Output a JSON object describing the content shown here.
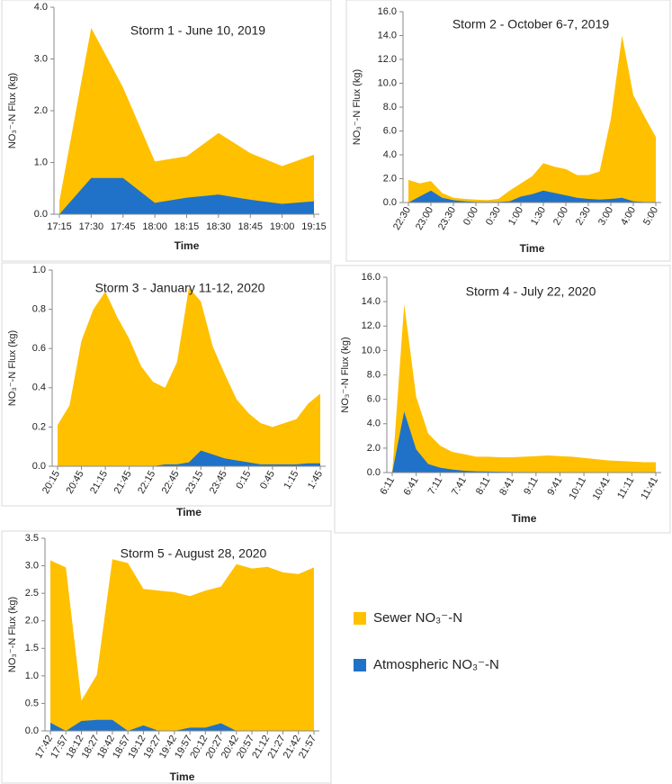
{
  "chart_data": [
    {
      "type": "area",
      "title": "Storm 1 - June 10, 2019",
      "y_label": "NO₃⁻-N Flux (kg)",
      "x_label": "Time",
      "categories": [
        "17:15",
        "17:30",
        "17:45",
        "18:00",
        "18:15",
        "18:30",
        "18:45",
        "19:00",
        "19:15"
      ],
      "series": [
        {
          "color": "#ffc000",
          "values": [
            0.25,
            3.6,
            2.45,
            1.02,
            1.12,
            1.57,
            1.18,
            0.93,
            1.15
          ]
        },
        {
          "color": "#1f72c8",
          "values": [
            0,
            0.7,
            0.7,
            0.22,
            0.32,
            0.38,
            0.28,
            0.2,
            0.25
          ]
        }
      ],
      "ylim": [
        0,
        4
      ],
      "yticks": [
        {
          "value": 0,
          "label": "0.0"
        },
        {
          "value": 1,
          "label": "1.0"
        },
        {
          "value": 2,
          "label": "2.0"
        },
        {
          "value": 3,
          "label": "3.0"
        },
        {
          "value": 4,
          "label": "4.0"
        }
      ],
      "rotate_labels": false
    },
    {
      "type": "area",
      "title": "Storm 2 - October 6-7, 2019",
      "y_label": "NO₃⁻-N Flux (kg)",
      "x_label": "Time",
      "categories": [
        "22:30",
        null,
        "23:00",
        null,
        "23:30",
        null,
        "0:00",
        null,
        "0:30",
        null,
        "1:00",
        null,
        "1:30",
        null,
        "2:00",
        null,
        "2:30",
        null,
        "3:00",
        null,
        "4:00",
        null,
        "5:00"
      ],
      "series": [
        {
          "color": "#ffc000",
          "values": [
            1.9,
            1.6,
            1.8,
            0.8,
            0.4,
            0.3,
            0.25,
            0.2,
            0.3,
            1.0,
            1.6,
            2.2,
            3.3,
            3.0,
            2.8,
            2.3,
            2.3,
            2.6,
            7.0,
            14.0,
            9.0,
            7.2,
            5.5
          ]
        },
        {
          "color": "#1f72c8",
          "values": [
            0,
            0.5,
            1.0,
            0.4,
            0.2,
            0.1,
            0.05,
            0.05,
            0.05,
            0.1,
            0.5,
            0.7,
            1.0,
            0.8,
            0.6,
            0.4,
            0.3,
            0.25,
            0.3,
            0.4,
            0.1,
            0.05,
            0.05
          ]
        }
      ],
      "ylim": [
        0,
        16
      ],
      "yticks": [
        {
          "value": 0,
          "label": "0.0"
        },
        {
          "value": 2,
          "label": "2.0"
        },
        {
          "value": 4,
          "label": "4.0"
        },
        {
          "value": 6,
          "label": "6.0"
        },
        {
          "value": 8,
          "label": "8.0"
        },
        {
          "value": 10,
          "label": "10.0"
        },
        {
          "value": 12,
          "label": "12.0"
        },
        {
          "value": 14,
          "label": "14.0"
        },
        {
          "value": 16,
          "label": "16.0"
        }
      ],
      "rotate_labels": true
    },
    {
      "type": "area",
      "title": "Storm 3 - January 11-12, 2020",
      "y_label": "NO₃⁻-N Flux (kg)",
      "x_label": "Time",
      "categories": [
        "20:15",
        null,
        "20:45",
        null,
        "21:15",
        null,
        "21:45",
        null,
        "22:15",
        null,
        "22:45",
        null,
        "23:15",
        null,
        "23:45",
        null,
        "0:15",
        null,
        "0:45",
        null,
        "1:15",
        null,
        "1:45"
      ],
      "series": [
        {
          "color": "#ffc000",
          "values": [
            0.21,
            0.31,
            0.64,
            0.8,
            0.89,
            0.76,
            0.65,
            0.51,
            0.43,
            0.4,
            0.53,
            0.91,
            0.84,
            0.61,
            0.47,
            0.34,
            0.27,
            0.22,
            0.2,
            0.22,
            0.24,
            0.32,
            0.37
          ]
        },
        {
          "color": "#1f72c8",
          "values": [
            0,
            0,
            0,
            0,
            0,
            0,
            0,
            0,
            0,
            0.01,
            0.01,
            0.02,
            0.08,
            0.06,
            0.04,
            0.03,
            0.02,
            0.01,
            0.01,
            0.01,
            0.01,
            0.015,
            0.015
          ]
        }
      ],
      "ylim": [
        0,
        1
      ],
      "yticks": [
        {
          "value": 0,
          "label": "0.0"
        },
        {
          "value": 0.2,
          "label": "0.2"
        },
        {
          "value": 0.4,
          "label": "0.4"
        },
        {
          "value": 0.6,
          "label": "0.6"
        },
        {
          "value": 0.8,
          "label": "0.8"
        },
        {
          "value": 1,
          "label": "1.0"
        }
      ],
      "rotate_labels": true
    },
    {
      "type": "area",
      "title": "Storm 4 - July 22, 2020",
      "y_label": "NO₃⁻-N Flux (kg)",
      "x_label": "Time",
      "categories": [
        "6:11",
        null,
        "6:41",
        null,
        "7:11",
        null,
        "7:41",
        null,
        "8:11",
        null,
        "8:41",
        null,
        "9:11",
        null,
        "9:41",
        null,
        "10:11",
        null,
        "10:41",
        null,
        "11:11",
        null,
        "11:41"
      ],
      "series": [
        {
          "color": "#ffc000",
          "values": [
            0,
            13.8,
            6.2,
            3.2,
            2.2,
            1.7,
            1.5,
            1.3,
            1.3,
            1.25,
            1.25,
            1.3,
            1.35,
            1.4,
            1.35,
            1.3,
            1.2,
            1.1,
            1.0,
            0.95,
            0.9,
            0.85,
            0.85
          ]
        },
        {
          "color": "#1f72c8",
          "values": [
            0,
            5.0,
            1.9,
            0.7,
            0.4,
            0.25,
            0.15,
            0.1,
            0.08,
            0.06,
            0.05,
            0.05,
            0.04,
            0.04,
            0.03,
            0.03,
            0.03,
            0.02,
            0.02,
            0.02,
            0.02,
            0.02,
            0.02
          ]
        }
      ],
      "ylim": [
        0,
        16
      ],
      "yticks": [
        {
          "value": 0,
          "label": "0.0"
        },
        {
          "value": 2,
          "label": "2.0"
        },
        {
          "value": 4,
          "label": "4.0"
        },
        {
          "value": 6,
          "label": "6.0"
        },
        {
          "value": 8,
          "label": "8.0"
        },
        {
          "value": 10,
          "label": "10.0"
        },
        {
          "value": 12,
          "label": "12.0"
        },
        {
          "value": 14,
          "label": "14.0"
        },
        {
          "value": 16,
          "label": "16.0"
        }
      ],
      "rotate_labels": true
    },
    {
      "type": "area",
      "title": "Storm 5 - August 28, 2020",
      "y_label": "NO₃⁻-N Flux (kg)",
      "x_label": "Time",
      "categories": [
        "17:42",
        "17:57",
        "18:12",
        "18:27",
        "18:42",
        "18:57",
        "19:12",
        "19:27",
        "19:42",
        "19:57",
        "20:12",
        "20:27",
        "20:42",
        "20:57",
        "21:12",
        "21:27",
        "21:42",
        "21:57"
      ],
      "series": [
        {
          "name": "Sewer NO₃⁻-N",
          "color": "#ffc000",
          "values": [
            3.1,
            2.97,
            0.55,
            1.02,
            3.12,
            3.05,
            2.58,
            2.55,
            2.52,
            2.45,
            2.55,
            2.62,
            3.03,
            2.95,
            2.98,
            2.88,
            2.85,
            2.97
          ]
        },
        {
          "name": "Atmospheric NO₃⁻-N",
          "color": "#1f72c8",
          "values": [
            0.15,
            0,
            0.18,
            0.2,
            0.2,
            0,
            0.1,
            0,
            0,
            0.06,
            0.06,
            0.14,
            0,
            0,
            0,
            0,
            0,
            0
          ]
        }
      ],
      "ylim": [
        0,
        3.5
      ],
      "yticks": [
        {
          "value": 0,
          "label": "0.0"
        },
        {
          "value": 0.5,
          "label": "0.5"
        },
        {
          "value": 1,
          "label": "1.0"
        },
        {
          "value": 1.5,
          "label": "1.5"
        },
        {
          "value": 2,
          "label": "2.0"
        },
        {
          "value": 2.5,
          "label": "2.5"
        },
        {
          "value": 3,
          "label": "3.0"
        },
        {
          "value": 3.5,
          "label": "3.5"
        }
      ],
      "rotate_labels": true
    }
  ]
}
